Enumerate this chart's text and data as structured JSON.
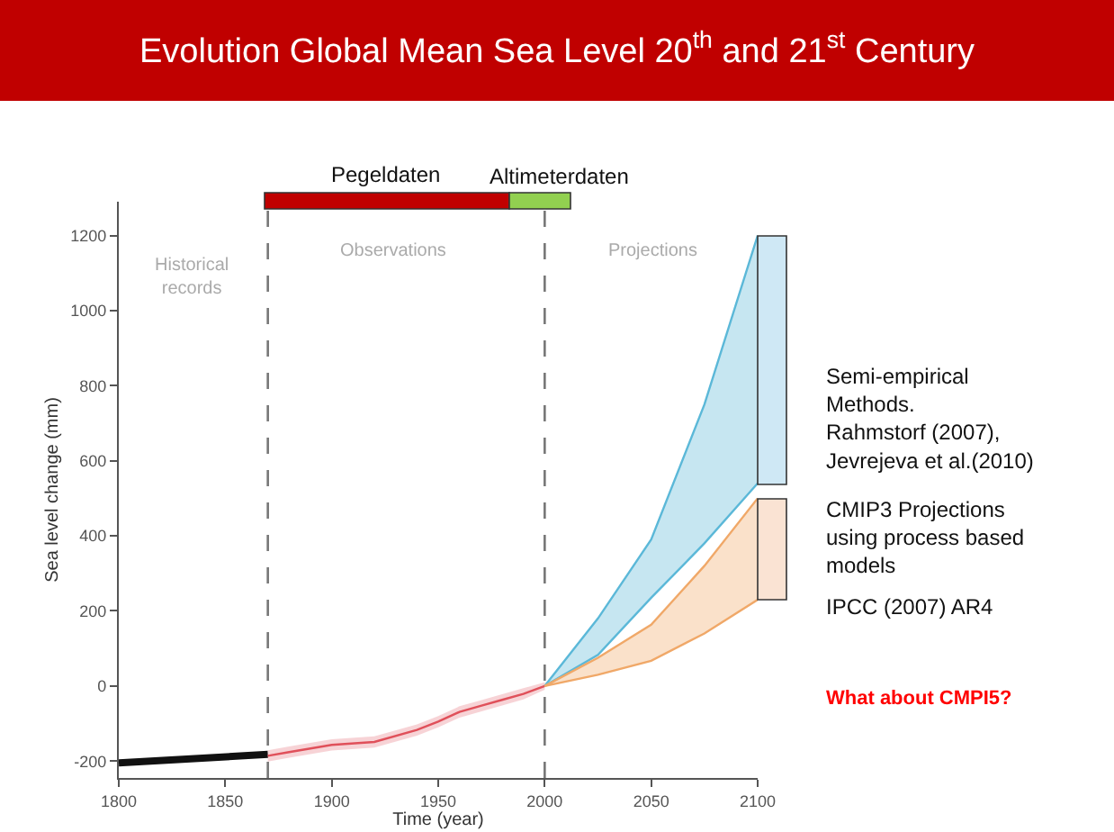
{
  "chart_data": {
    "type": "line",
    "title": "Evolution Global Mean Sea Level 20$^{th}$ and 21$^{st}$ Century",
    "xlabel": "Time (year)",
    "ylabel": "Sea level change (mm)",
    "series": [
      {
        "color": "#111111",
        "x": [
          1800,
          1870
        ],
        "values": [
          -205,
          -182
        ]
      },
      {
        "color": "#e0505a",
        "x": [
          1870,
          1880,
          1900,
          1920,
          1940,
          1950,
          1960,
          1970,
          1980,
          1990,
          2000
        ],
        "values": [
          -186,
          -176,
          -157,
          -149,
          -117,
          -95,
          -69,
          -53,
          -37,
          -21,
          0
        ],
        "lower": [
          -201,
          -191,
          -172,
          -164,
          -132,
          -110,
          -84,
          -68,
          -52,
          -36,
          -10
        ],
        "upper": [
          -171,
          -161,
          -142,
          -134,
          -102,
          -80,
          -54,
          -38,
          -22,
          -6,
          10
        ]
      },
      {
        "type": "line",
        "color": "#5bb8d8",
        "x": [
          2000,
          2025,
          2050,
          2075,
          2100
        ],
        "values": [
          0,
          83,
          235,
          380,
          540
        ]
      },
      {
        "type": "area",
        "color": "#5bb8d8",
        "x": [
          2000,
          2025,
          2050,
          2075,
          2100
        ],
        "values": [
          0,
          180,
          390,
          750,
          1200
        ]
      },
      {
        "type": "line",
        "color": "#f0a868",
        "x": [
          2000,
          2025,
          2050,
          2075,
          2100
        ],
        "values": [
          0,
          30,
          67,
          140,
          230
        ]
      },
      {
        "type": "area",
        "color": "#f0a868",
        "x": [
          2000,
          2025,
          2050,
          2075,
          2100
        ],
        "values": [
          0,
          75,
          163,
          320,
          500
        ]
      }
    ],
    "xlim": [
      1800,
      2100
    ],
    "xticks": [
      1800,
      1850,
      1900,
      1950,
      2000,
      2050,
      2100
    ],
    "ylim": [
      -245,
      1290
    ],
    "yticks": [
      -200,
      0,
      200,
      400,
      600,
      800,
      1000,
      1200
    ],
    "ref_lines": [
      {
        "axis": "x",
        "value": 1870,
        "line_style": "dashed"
      },
      {
        "axis": "x",
        "value": 2000,
        "line_style": "dashed"
      }
    ],
    "annotations": [
      "Pegeldaten",
      "Altimeterdaten",
      "Historical\nrecords",
      "Observations",
      "Projections",
      "Semi-empirical\nMethods.\nRahmstorf (2007),\nJevrejeva et al.(2010)",
      "CMIP3 Projections\nusing process based\nmodels",
      "IPCC (2007) AR4",
      "What about CMPI5?"
    ]
  }
}
